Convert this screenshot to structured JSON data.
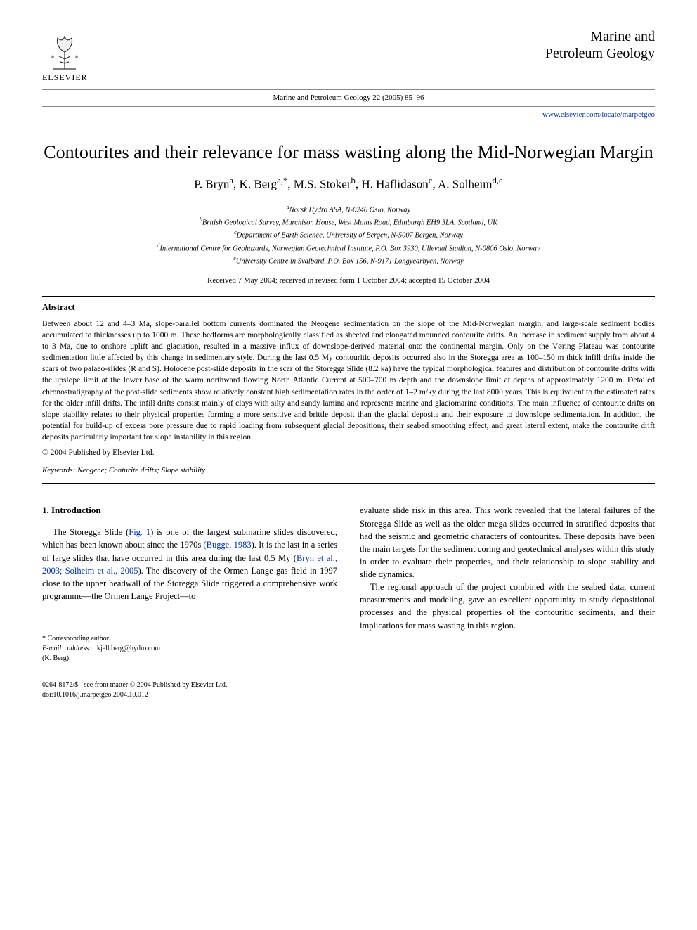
{
  "header": {
    "publisher_label": "ELSEVIER",
    "citation": "Marine and Petroleum Geology 22 (2005) 85–96",
    "journal_brand_line1": "Marine and",
    "journal_brand_line2": "Petroleum Geology",
    "journal_url": "www.elsevier.com/locate/marpetgeo"
  },
  "title": "Contourites and their relevance for mass wasting along the Mid-Norwegian Margin",
  "authors_html": "P. Bryn<sup>a</sup>, K. Berg<sup>a,*</sup>, M.S. Stoker<sup>b</sup>, H. Haflidason<sup>c</sup>, A. Solheim<sup>d,e</sup>",
  "affiliations": {
    "a": "Norsk Hydro ASA, N-0246 Oslo, Norway",
    "b": "British Geological Survey, Murchison House, West Mains Road, Edinburgh EH9 3LA, Scotland, UK",
    "c": "Department of Earth Science, University of Bergen, N-5007 Bergen, Norway",
    "d": "International Centre for Geohazards, Norwegian Geotechnical Institute, P.O. Box 3930, Ullevaal Stadion, N-0806 Oslo, Norway",
    "e": "University Centre in Svalbard, P.O. Box 156, N-9171 Longyearbyen, Norway"
  },
  "dates": "Received 7 May 2004; received in revised form 1 October 2004; accepted 15 October 2004",
  "abstract": {
    "heading": "Abstract",
    "body": "Between about 12 and 4–3 Ma, slope-parallel bottom currents dominated the Neogene sedimentation on the slope of the Mid-Norwegian margin, and large-scale sediment bodies accumulated to thicknesses up to 1000 m. These bedforms are morphologically classified as sheeted and elongated mounded contourite drifts. An increase in sediment supply from about 4 to 3 Ma, due to onshore uplift and glaciation, resulted in a massive influx of downslope-derived material onto the continental margin. Only on the Vøring Plateau was contourite sedimentation little affected by this change in sedimentary style. During the last 0.5 My contouritic deposits occurred also in the Storegga area as 100–150 m thick infill drifts inside the scars of two palaeo-slides (R and S). Holocene post-slide deposits in the scar of the Storegga Slide (8.2 ka) have the typical morphological features and distribution of contourite drifts with the upslope limit at the lower base of the warm northward flowing North Atlantic Current at 500–700 m depth and the downslope limit at depths of approximately 1200 m. Detailed chronostratigraphy of the post-slide sediments show relatively constant high sedimentation rates in the order of 1–2 m/ky during the last 8000 years. This is equivalent to the estimated rates for the older infill drifts. The infill drifts consist mainly of clays with silty and sandy lamina and represents marine and glaciomarine conditions. The main influence of contourite drifts on slope stability relates to their physical properties forming a more sensitive and brittle deposit than the glacial deposits and their exposure to downslope sedimentation. In addition, the potential for build-up of excess pore pressure due to rapid loading from subsequent glacial depositions, their seabed smoothing effect, and great lateral extent, make the contourite drift deposits particularly important for slope instability in this region.",
    "copyright": "© 2004 Published by Elsevier Ltd."
  },
  "keywords": "Keywords: Neogene; Conturite drifts; Slope stability",
  "body": {
    "section1_heading": "1. Introduction",
    "col1_p1_pre": "The Storegga Slide (",
    "col1_p1_fig": "Fig. 1",
    "col1_p1_mid1": ") is one of the largest submarine slides discovered, which has been known about since the 1970s (",
    "col1_p1_cite1": "Bugge, 1983",
    "col1_p1_mid2": "). It is the last in a series of large slides that have occurred in this area during the last 0.5 My (",
    "col1_p1_cite2": "Bryn et al., 2003; Solheim et al., 2005",
    "col1_p1_post": "). The discovery of the Ormen Lange gas field in 1997 close to the upper headwall of the Storegga Slide triggered a comprehensive work programme—the Ormen Lange Project—to",
    "col2_p1": "evaluate slide risk in this area. This work revealed that the lateral failures of the Storegga Slide as well as the older mega slides occurred in stratified deposits that had the seismic and geometric characters of contourites. These deposits have been the main targets for the sediment coring and geotechnical analyses within this study in order to evaluate their properties, and their relationship to slope stability and slide dynamics.",
    "col2_p2": "The regional approach of the project combined with the seabed data, current measurements and modeling, gave an excellent opportunity to study depositional processes and the physical properties of the contouritic sediments, and their implications for mass wasting in this region."
  },
  "footnotes": {
    "corr": "* Corresponding author.",
    "email_label": "E-mail address:",
    "email": "kjell.berg@hydro.com (K. Berg)."
  },
  "footer": {
    "line1": "0264-8172/$ - see front matter © 2004 Published by Elsevier Ltd.",
    "line2": "doi:10.1016/j.marpetgeo.2004.10.012"
  },
  "colors": {
    "link": "#0033aa",
    "text": "#000000",
    "rule_light": "#888888",
    "tree": "#333333"
  }
}
